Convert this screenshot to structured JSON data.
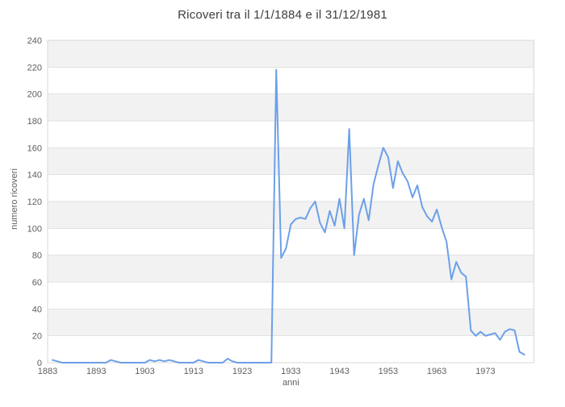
{
  "chart": {
    "title": "Ricoveri tra il 1/1/1884 e il 31/12/1981",
    "x_axis_title": "anni",
    "y_axis_title": "numero ricoveri"
  },
  "style": {
    "line_color": "#6ca0e8",
    "band_gray": "#f2f2f2",
    "band_white": "#ffffff",
    "grid_color": "#e2e2e2",
    "border_color": "#d9d9d9",
    "label_color": "#5f5f5f",
    "title_color": "#3d3d3d"
  },
  "chart_data": {
    "type": "line",
    "title": "Ricoveri tra il 1/1/1884 e il 31/12/1981",
    "xlabel": "anni",
    "ylabel": "numero ricoveri",
    "xlim": [
      1883,
      1983
    ],
    "ylim": [
      0,
      240
    ],
    "x_ticks": [
      1883,
      1893,
      1903,
      1913,
      1923,
      1933,
      1943,
      1953,
      1963,
      1973
    ],
    "y_ticks": [
      0,
      20,
      40,
      60,
      80,
      100,
      120,
      140,
      160,
      180,
      200,
      220,
      240
    ],
    "grid": "horizontal",
    "background_bands": "alternating gray/white every 20 units, gray on 20-40, 60-80, 100-120, 140-160, 180-200, 220-240",
    "legend": "none",
    "series": [
      {
        "name": "numero ricoveri",
        "color": "#6ca0e8",
        "x_start": 1884,
        "x_step": 1,
        "x_end": 1981,
        "values": [
          2,
          1,
          0,
          0,
          0,
          0,
          0,
          0,
          0,
          0,
          0,
          0,
          2,
          1,
          0,
          0,
          0,
          0,
          0,
          0,
          2,
          1,
          2,
          1,
          2,
          1,
          0,
          0,
          0,
          0,
          2,
          1,
          0,
          0,
          0,
          0,
          3,
          1,
          0,
          0,
          0,
          0,
          0,
          0,
          0,
          0,
          218,
          78,
          85,
          103,
          107,
          108,
          107,
          115,
          120,
          104,
          97,
          113,
          102,
          122,
          100,
          174,
          80,
          110,
          122,
          106,
          133,
          147,
          160,
          153,
          130,
          150,
          141,
          135,
          123,
          132,
          116,
          109,
          105,
          114,
          101,
          90,
          62,
          75,
          67,
          64,
          24,
          20,
          23,
          20,
          21,
          22,
          17,
          23,
          25,
          24,
          8,
          6
        ]
      }
    ]
  }
}
